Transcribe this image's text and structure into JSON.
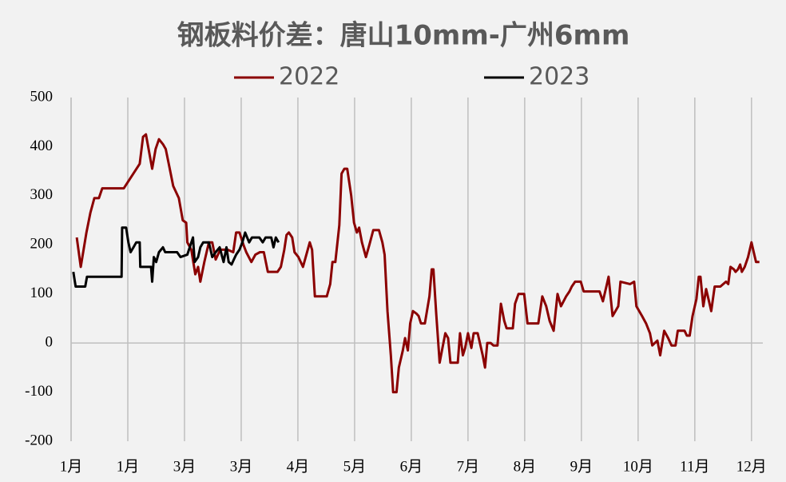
{
  "chart_data": {
    "type": "line",
    "title": "钢板料价差：唐山10mm-广州6mm",
    "xlim": [
      0,
      12.2
    ],
    "xticks": [
      {
        "value": 0,
        "label": "1月"
      },
      {
        "value": 1,
        "label": "1月"
      },
      {
        "value": 2,
        "label": "3月"
      },
      {
        "value": 3,
        "label": "3月"
      },
      {
        "value": 4,
        "label": "4月"
      },
      {
        "value": 5,
        "label": "5月"
      },
      {
        "value": 6,
        "label": "6月"
      },
      {
        "value": 7,
        "label": "7月"
      },
      {
        "value": 8,
        "label": "8月"
      },
      {
        "value": 9,
        "label": "9月"
      },
      {
        "value": 10,
        "label": "10月"
      },
      {
        "value": 11,
        "label": "11月"
      },
      {
        "value": 12,
        "label": "12月"
      }
    ],
    "ylim": [
      -200,
      500
    ],
    "yticks": [
      -200,
      -100,
      0,
      100,
      200,
      300,
      400,
      500
    ],
    "grid": true,
    "legend": "top",
    "series": [
      {
        "name": "2022",
        "color": "#8b0000",
        "x": [
          0.1,
          0.17,
          0.27,
          0.34,
          0.41,
          0.49,
          0.55,
          0.93,
          1.21,
          1.27,
          1.32,
          1.39,
          1.43,
          1.49,
          1.55,
          1.62,
          1.67,
          1.74,
          1.8,
          1.9,
          1.97,
          2.03,
          2.05,
          2.12,
          2.19,
          2.24,
          2.28,
          2.35,
          2.43,
          2.49,
          2.55,
          2.63,
          2.76,
          2.86,
          2.91,
          2.97,
          3.04,
          3.09,
          3.18,
          3.25,
          3.33,
          3.4,
          3.47,
          3.64,
          3.7,
          3.76,
          3.8,
          3.84,
          3.9,
          3.94,
          4.01,
          4.09,
          4.21,
          4.25,
          4.3,
          4.51,
          4.57,
          4.61,
          4.66,
          4.73,
          4.77,
          4.82,
          4.87,
          4.94,
          4.99,
          5.04,
          5.08,
          5.13,
          5.2,
          5.26,
          5.33,
          5.43,
          5.49,
          5.53,
          5.58,
          5.64,
          5.68,
          5.74,
          5.78,
          5.85,
          5.89,
          5.94,
          5.98,
          6.03,
          6.09,
          6.13,
          6.17,
          6.24,
          6.32,
          6.36,
          6.39,
          6.44,
          6.5,
          6.55,
          6.6,
          6.65,
          6.69,
          6.82,
          6.86,
          6.91,
          6.95,
          7.0,
          7.06,
          7.1,
          7.17,
          7.22,
          7.26,
          7.3,
          7.34,
          7.4,
          7.45,
          7.52,
          7.58,
          7.64,
          7.68,
          7.79,
          7.83,
          7.89,
          7.99,
          8.05,
          8.24,
          8.31,
          8.38,
          8.44,
          8.51,
          8.58,
          8.64,
          8.73,
          8.79,
          8.83,
          8.89,
          8.99,
          9.04,
          9.32,
          9.38,
          9.44,
          9.48,
          9.55,
          9.65,
          9.69,
          9.86,
          9.93,
          9.97,
          10.07,
          10.14,
          10.21,
          10.25,
          10.34,
          10.39,
          10.46,
          10.53,
          10.59,
          10.66,
          10.7,
          10.82,
          10.86,
          10.91,
          10.96,
          11.03,
          11.07,
          11.1,
          11.15,
          11.2,
          11.25,
          11.29,
          11.35,
          11.45,
          11.55,
          11.59,
          11.63,
          11.69,
          11.72,
          11.76,
          11.8,
          11.83,
          11.88,
          11.94,
          12.0,
          12.04,
          12.08,
          12.14
        ],
        "values": [
          215,
          155,
          225,
          265,
          295,
          295,
          315,
          315,
          365,
          420,
          425,
          380,
          355,
          395,
          415,
          405,
          395,
          355,
          320,
          295,
          250,
          245,
          205,
          190,
          140,
          155,
          125,
          165,
          205,
          205,
          170,
          190,
          190,
          185,
          225,
          225,
          200,
          185,
          165,
          180,
          185,
          185,
          145,
          145,
          155,
          190,
          220,
          225,
          215,
          185,
          175,
          155,
          205,
          190,
          95,
          95,
          120,
          165,
          165,
          240,
          345,
          355,
          355,
          300,
          245,
          225,
          235,
          205,
          175,
          200,
          230,
          230,
          205,
          180,
          65,
          -25,
          -100,
          -100,
          -50,
          -15,
          10,
          -15,
          40,
          65,
          60,
          55,
          40,
          40,
          95,
          150,
          150,
          60,
          -40,
          -10,
          20,
          10,
          -40,
          -40,
          20,
          -25,
          -10,
          20,
          -10,
          20,
          20,
          -5,
          -25,
          -50,
          0,
          0,
          -5,
          -5,
          80,
          45,
          30,
          30,
          80,
          100,
          100,
          40,
          40,
          95,
          75,
          45,
          25,
          100,
          75,
          95,
          105,
          115,
          125,
          125,
          105,
          105,
          85,
          115,
          135,
          55,
          75,
          125,
          120,
          125,
          75,
          55,
          40,
          20,
          -5,
          5,
          -25,
          25,
          10,
          -5,
          -5,
          25,
          25,
          15,
          15,
          55,
          90,
          135,
          135,
          75,
          110,
          85,
          65,
          115,
          115,
          125,
          120,
          155,
          150,
          145,
          150,
          160,
          145,
          155,
          175,
          205,
          185,
          165,
          165
        ]
      },
      {
        "name": "2023",
        "color": "#000000",
        "x": [
          0.04,
          0.08,
          0.25,
          0.28,
          0.89,
          0.9,
          0.97,
          1.01,
          1.05,
          1.1,
          1.15,
          1.21,
          1.22,
          1.41,
          1.43,
          1.46,
          1.5,
          1.55,
          1.62,
          1.66,
          1.87,
          1.93,
          2.05,
          2.15,
          2.18,
          2.24,
          2.28,
          2.33,
          2.43,
          2.49,
          2.55,
          2.62,
          2.69,
          2.74,
          2.78,
          2.83,
          2.87,
          2.91,
          2.97,
          3.02,
          3.07,
          3.14,
          3.19,
          3.32,
          3.38,
          3.43,
          3.53,
          3.57,
          3.61,
          3.66
        ],
        "values": [
          145,
          115,
          115,
          135,
          135,
          235,
          235,
          205,
          185,
          195,
          205,
          205,
          155,
          155,
          125,
          175,
          165,
          185,
          195,
          185,
          185,
          175,
          180,
          215,
          165,
          175,
          195,
          205,
          205,
          175,
          185,
          195,
          165,
          195,
          165,
          160,
          170,
          180,
          190,
          205,
          225,
          205,
          215,
          215,
          205,
          215,
          215,
          195,
          215,
          205
        ]
      }
    ]
  }
}
